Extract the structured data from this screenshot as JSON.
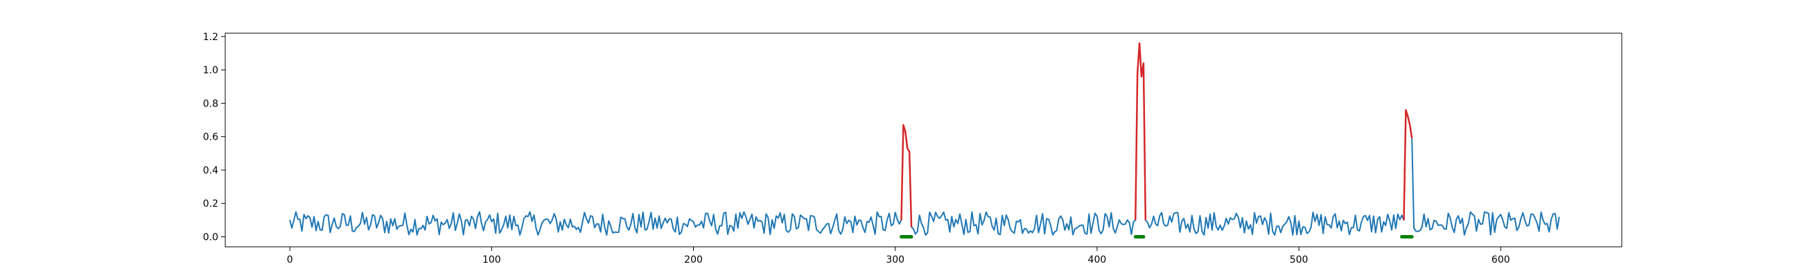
{
  "chart_data": {
    "type": "line",
    "title": "",
    "xlabel": "",
    "ylabel": "",
    "xlim": [
      -32,
      660
    ],
    "ylim": [
      -0.06,
      1.22
    ],
    "x_ticks": [
      0,
      100,
      200,
      300,
      400,
      500,
      600
    ],
    "y_ticks": [
      0.0,
      0.2,
      0.4,
      0.6,
      0.8,
      1.0,
      1.2
    ],
    "x_tick_labels": [
      "0",
      "100",
      "200",
      "300",
      "400",
      "500",
      "600"
    ],
    "y_tick_labels": [
      "0.0",
      "0.2",
      "0.4",
      "0.6",
      "0.8",
      "1.0",
      "1.2"
    ],
    "grid": false,
    "legend": "none",
    "colors": {
      "signal": "#1f77b4",
      "anomaly": "#d62728",
      "marker": "#008000"
    },
    "n_points": 630,
    "baseline": {
      "x_range": [
        0,
        629
      ],
      "typical_min": 0.01,
      "typical_max": 0.15,
      "typical_mean": 0.075
    },
    "anomalies": [
      {
        "x": [
          303,
          304,
          305,
          306,
          307,
          308
        ],
        "y": [
          0.1,
          0.67,
          0.63,
          0.53,
          0.51,
          0.06
        ]
      },
      {
        "x": [
          419,
          420,
          421,
          422,
          423,
          424
        ],
        "y": [
          0.1,
          0.98,
          1.16,
          0.96,
          1.04,
          0.1
        ]
      },
      {
        "x": [
          552,
          553,
          554,
          555,
          556
        ],
        "y": [
          0.1,
          0.76,
          0.72,
          0.67,
          0.59
        ]
      }
    ],
    "markers": [
      {
        "x_start": 303,
        "x_end": 308,
        "y": 0.0
      },
      {
        "x_start": 419,
        "x_end": 423,
        "y": 0.0
      },
      {
        "x_start": 551,
        "x_end": 556,
        "y": 0.0
      }
    ]
  }
}
